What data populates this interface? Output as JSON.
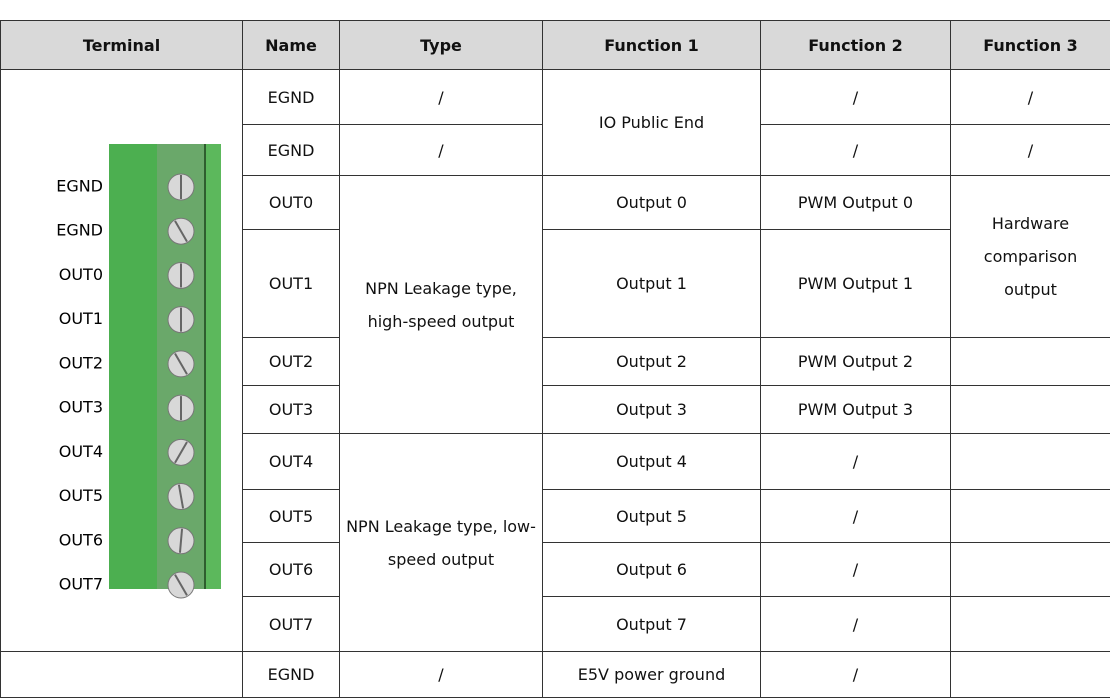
{
  "table": {
    "header": [
      "Terminal",
      "Name",
      "Type",
      "Function 1",
      "Function 2",
      "Function 3"
    ],
    "rows": [
      {
        "name": "EGND",
        "type": "/",
        "function1": "IO Public End",
        "function2": "/",
        "function3": "/"
      },
      {
        "name": "EGND",
        "type": "/",
        "function2": "/",
        "function3": "/"
      },
      {
        "name": "OUT0",
        "type": "NPN Leakage type, high-speed output",
        "function1": "Output 0",
        "function2": "PWM Output 0",
        "function3": "Hardware comparison output"
      },
      {
        "name": "OUT1",
        "function1": "Output 1",
        "function2": "PWM Output 1"
      },
      {
        "name": "OUT2",
        "function1": "Output 2",
        "function2": "PWM Output 2"
      },
      {
        "name": "OUT3",
        "function1": "Output 3",
        "function2": "PWM Output 3"
      },
      {
        "name": "OUT4",
        "type": "NPN Leakage type, low-speed output",
        "function1": "Output 4",
        "function2": "/"
      },
      {
        "name": "OUT5",
        "function1": "Output 5",
        "function2": "/"
      },
      {
        "name": "OUT6",
        "function1": "Output 6",
        "function2": "/"
      },
      {
        "name": "OUT7",
        "function1": "Output 7",
        "function2": "/"
      },
      {
        "name": "EGND",
        "type": "/",
        "function1": "E5V power ground",
        "function2": "/"
      }
    ]
  },
  "terminal": {
    "labels": [
      "EGND",
      "EGND",
      "OUT0",
      "OUT1",
      "OUT2",
      "OUT3",
      "OUT4",
      "OUT5",
      "OUT6",
      "OUT7"
    ]
  }
}
